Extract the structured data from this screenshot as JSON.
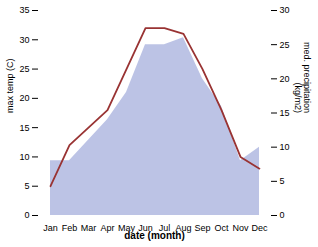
{
  "chart_data": {
    "type": "line",
    "categories": [
      "Jan",
      "Feb",
      "Mar",
      "Apr",
      "May",
      "Jun",
      "Jul",
      "Aug",
      "Sep",
      "Oct",
      "Nov",
      "Dec"
    ],
    "xlabel": "date (month)",
    "ylabel": "max temp (C)",
    "y2label": "med. precipitation\n(kg/m2)",
    "ylim": [
      0,
      35
    ],
    "yticks": [
      0,
      5,
      10,
      15,
      20,
      25,
      30,
      35
    ],
    "y2lim": [
      0,
      30
    ],
    "y2ticks": [
      0,
      5,
      10,
      15,
      20,
      25,
      30
    ],
    "series": [
      {
        "type": "area",
        "axis": "y2",
        "color": "#b0b8e0",
        "values": [
          8,
          8,
          11,
          14,
          18,
          25,
          25,
          26,
          20,
          16,
          8,
          10
        ]
      },
      {
        "type": "line",
        "color": "#993333",
        "values": [
          5,
          12,
          15,
          18,
          25,
          32,
          32,
          31,
          25,
          18,
          10,
          8
        ]
      }
    ]
  }
}
